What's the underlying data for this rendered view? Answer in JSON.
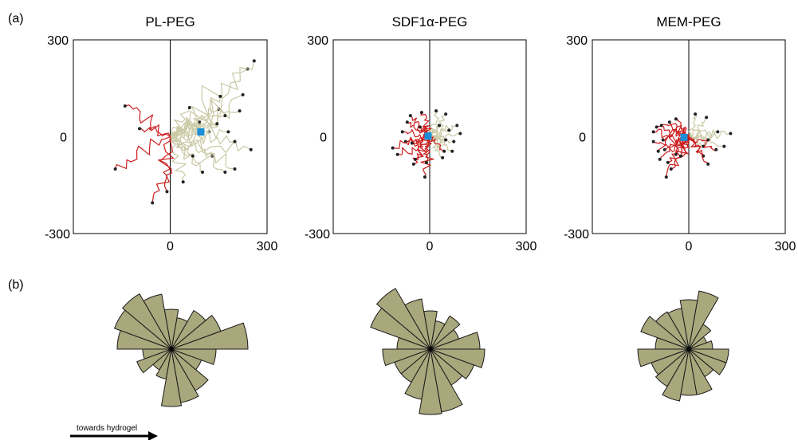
{
  "figure": {
    "label_a": "(a)",
    "label_b": "(b)",
    "arrow_label": "towards hydrogel"
  },
  "colors": {
    "track_toward": "#c9c9a6",
    "track_away": "#cc1f1f",
    "endpoint": "#222222",
    "com_marker": "#1a8fd8",
    "rose_fill": "#a9a77c",
    "rose_stroke": "#1a1a1a"
  },
  "chart_data": [
    {
      "type": "scatter",
      "title": "PL-PEG",
      "xlim": [
        -300,
        300
      ],
      "ylim": [
        -300,
        300
      ],
      "tick_labels": {
        "x_zero": "0",
        "x_max": "300",
        "y_max": "300",
        "y_zero": "0",
        "y_min": "-300"
      },
      "center_of_mass": [
        95,
        15
      ],
      "track_seed": 11,
      "tracks_toward": [
        [
          225,
          130
        ],
        [
          240,
          210
        ],
        [
          260,
          235
        ],
        [
          150,
          85
        ],
        [
          170,
          65
        ],
        [
          90,
          45
        ],
        [
          130,
          -60
        ],
        [
          200,
          -100
        ],
        [
          170,
          -110
        ],
        [
          155,
          125
        ],
        [
          215,
          80
        ],
        [
          100,
          -110
        ],
        [
          70,
          -60
        ],
        [
          145,
          40
        ],
        [
          250,
          -40
        ],
        [
          120,
          15
        ],
        [
          180,
          15
        ],
        [
          60,
          90
        ],
        [
          40,
          -140
        ],
        [
          200,
          -15
        ]
      ],
      "tracks_away": [
        [
          -140,
          95
        ],
        [
          -170,
          -100
        ],
        [
          -55,
          -205
        ],
        [
          -95,
          25
        ],
        [
          -10,
          -170
        ]
      ]
    },
    {
      "type": "scatter",
      "title": "SDF1α-PEG",
      "xlim": [
        -300,
        300
      ],
      "ylim": [
        -300,
        300
      ],
      "tick_labels": {
        "x_zero": "0",
        "x_max": "300",
        "y_max": "300",
        "y_zero": "0",
        "y_min": "-300"
      },
      "center_of_mass": [
        -5,
        2
      ],
      "track_seed": 23,
      "tracks_toward": [
        [
          50,
          70
        ],
        [
          85,
          35
        ],
        [
          75,
          -15
        ],
        [
          40,
          -65
        ],
        [
          60,
          20
        ],
        [
          20,
          80
        ],
        [
          95,
          10
        ],
        [
          70,
          -45
        ],
        [
          30,
          35
        ],
        [
          50,
          -10
        ]
      ],
      "tracks_away": [
        [
          -60,
          65
        ],
        [
          -75,
          -15
        ],
        [
          -50,
          -85
        ],
        [
          -15,
          -125
        ],
        [
          -115,
          -35
        ],
        [
          -85,
          15
        ],
        [
          -100,
          -55
        ],
        [
          -30,
          30
        ],
        [
          -45,
          -70
        ],
        [
          -70,
          45
        ],
        [
          -10,
          -80
        ],
        [
          45,
          -45
        ],
        [
          -55,
          -20
        ],
        [
          -25,
          75
        ]
      ]
    },
    {
      "type": "scatter",
      "title": "MEM-PEG",
      "xlim": [
        -300,
        300
      ],
      "ylim": [
        -300,
        300
      ],
      "tick_labels": {
        "x_zero": "0",
        "x_max": "300",
        "y_max": "300",
        "y_zero": "0",
        "y_min": "-300"
      },
      "center_of_mass": [
        -15,
        -2
      ],
      "track_seed": 37,
      "tracks_toward": [
        [
          55,
          60
        ],
        [
          90,
          15
        ],
        [
          110,
          -30
        ],
        [
          45,
          -30
        ],
        [
          20,
          70
        ],
        [
          130,
          10
        ],
        [
          60,
          -10
        ]
      ],
      "tracks_away": [
        [
          -75,
          -40
        ],
        [
          -100,
          30
        ],
        [
          -110,
          15
        ],
        [
          -85,
          35
        ],
        [
          -65,
          -80
        ],
        [
          -70,
          -125
        ],
        [
          -95,
          -45
        ],
        [
          -40,
          55
        ],
        [
          -55,
          -100
        ],
        [
          -40,
          -55
        ],
        [
          -80,
          -10
        ],
        [
          -25,
          -60
        ],
        [
          -60,
          45
        ],
        [
          -90,
          -70
        ],
        [
          45,
          -60
        ],
        [
          60,
          -85
        ],
        [
          85,
          -40
        ],
        [
          -110,
          -15
        ]
      ]
    },
    {
      "type": "rose",
      "sectors_deg": 20,
      "radii": [
        2.4,
        1.65,
        1.4,
        1.0,
        1.25,
        1.75,
        2.0,
        1.9,
        1.7,
        0.9,
        1.15,
        0.75,
        0.95,
        1.8,
        1.7,
        1.5,
        1.0,
        1.4
      ]
    },
    {
      "type": "rose",
      "sectors_deg": 20,
      "radii": [
        1.55,
        0.95,
        1.2,
        0.9,
        1.2,
        1.6,
        2.2,
        2.0,
        1.05,
        1.5,
        1.2,
        1.2,
        1.6,
        2.05,
        2.0,
        1.3,
        1.45,
        1.7
      ]
    },
    {
      "type": "rose",
      "sectors_deg": 20,
      "radii": [
        0.75,
        0.6,
        0.9,
        1.85,
        1.55,
        1.3,
        1.35,
        1.6,
        1.05,
        1.6,
        1.25,
        1.35,
        1.65,
        1.45,
        1.45,
        1.0,
        1.25,
        1.25
      ]
    }
  ]
}
